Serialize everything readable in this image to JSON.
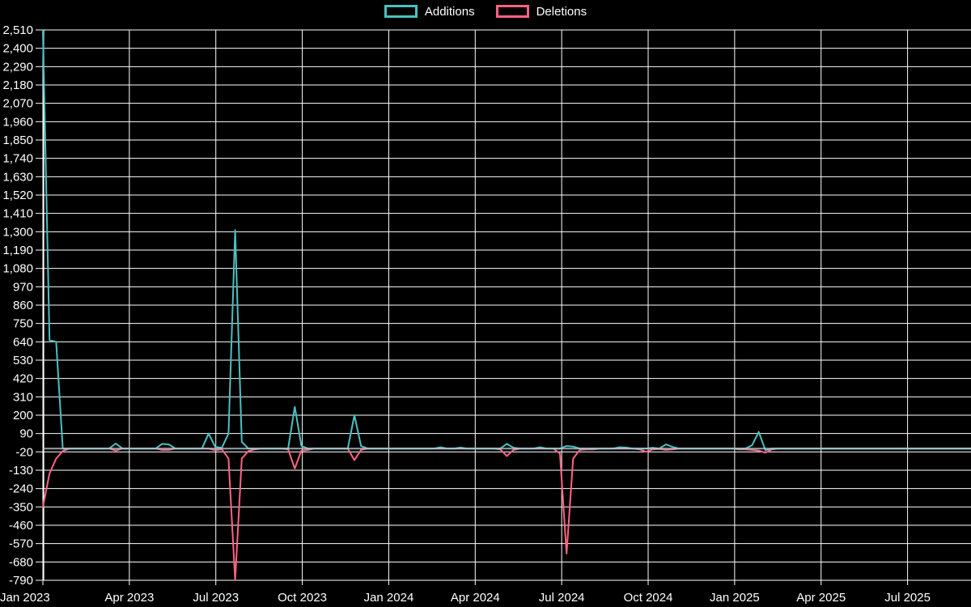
{
  "legend": {
    "items": [
      {
        "label": "Additions",
        "color": "#4bc0c0"
      },
      {
        "label": "Deletions",
        "color": "#ff6384"
      }
    ]
  },
  "chart_data": {
    "type": "line",
    "title": "",
    "background_color": "#000000",
    "grid_color": "#ffffff",
    "text_color": "#ffffff",
    "zero_line_color": "#b7cdd2",
    "legend_position": "top",
    "y_axis": {
      "min": -790,
      "max": 2510,
      "step": 110,
      "tick_labels": [
        "2,510",
        "2,400",
        "2,290",
        "2,180",
        "2,070",
        "1,960",
        "1,850",
        "1,740",
        "1,630",
        "1,520",
        "1,410",
        "1,300",
        "1,190",
        "1,080",
        "970",
        "860",
        "750",
        "640",
        "530",
        "420",
        "310",
        "200",
        "90",
        "-20",
        "-130",
        "-240",
        "-350",
        "-460",
        "-570",
        "-680",
        "-790"
      ]
    },
    "x_axis": {
      "tick_labels": [
        "Jan 2023",
        "Apr 2023",
        "Jul 2023",
        "Oct 2023",
        "Jan 2024",
        "Apr 2024",
        "Jul 2024",
        "Oct 2024",
        "Jan 2025",
        "Apr 2025",
        "Jul 2025"
      ],
      "tick_month_index": [
        0,
        3,
        6,
        9,
        12,
        15,
        18,
        21,
        24,
        27,
        30
      ],
      "start_week_date": "2023-01-01",
      "weeks_total": 140
    },
    "series": [
      {
        "name": "Additions",
        "color": "#4bc0c0",
        "default_value": 0,
        "points_week_value": [
          [
            0,
            2510
          ],
          [
            1,
            650
          ],
          [
            2,
            640
          ],
          [
            3,
            0
          ],
          [
            10,
            0
          ],
          [
            11,
            30
          ],
          [
            12,
            0
          ],
          [
            17,
            0
          ],
          [
            18,
            28
          ],
          [
            19,
            25
          ],
          [
            20,
            0
          ],
          [
            24,
            0
          ],
          [
            25,
            90
          ],
          [
            26,
            10
          ],
          [
            27,
            5
          ],
          [
            28,
            90
          ],
          [
            29,
            1310
          ],
          [
            30,
            40
          ],
          [
            31,
            0
          ],
          [
            37,
            0
          ],
          [
            38,
            250
          ],
          [
            39,
            15
          ],
          [
            40,
            0
          ],
          [
            46,
            0
          ],
          [
            47,
            200
          ],
          [
            48,
            15
          ],
          [
            49,
            0
          ],
          [
            59,
            0
          ],
          [
            60,
            8
          ],
          [
            61,
            0
          ],
          [
            63,
            6
          ],
          [
            64,
            0
          ],
          [
            69,
            0
          ],
          [
            70,
            28
          ],
          [
            71,
            5
          ],
          [
            72,
            0
          ],
          [
            74,
            0
          ],
          [
            75,
            8
          ],
          [
            76,
            0
          ],
          [
            78,
            0
          ],
          [
            79,
            15
          ],
          [
            80,
            12
          ],
          [
            81,
            0
          ],
          [
            86,
            0
          ],
          [
            87,
            8
          ],
          [
            88,
            6
          ],
          [
            89,
            0
          ],
          [
            91,
            0
          ],
          [
            92,
            5
          ],
          [
            93,
            0
          ],
          [
            94,
            25
          ],
          [
            95,
            10
          ],
          [
            96,
            0
          ],
          [
            106,
            0
          ],
          [
            107,
            20
          ],
          [
            108,
            100
          ],
          [
            109,
            -10
          ],
          [
            110,
            0
          ]
        ]
      },
      {
        "name": "Deletions",
        "color": "#ff6384",
        "default_value": 0,
        "points_week_value": [
          [
            0,
            -350
          ],
          [
            1,
            -150
          ],
          [
            2,
            -60
          ],
          [
            3,
            -15
          ],
          [
            4,
            0
          ],
          [
            10,
            0
          ],
          [
            11,
            -12
          ],
          [
            12,
            0
          ],
          [
            17,
            0
          ],
          [
            18,
            -8
          ],
          [
            19,
            -8
          ],
          [
            20,
            0
          ],
          [
            25,
            0
          ],
          [
            26,
            -10
          ],
          [
            27,
            -5
          ],
          [
            28,
            -60
          ],
          [
            29,
            -790
          ],
          [
            30,
            -60
          ],
          [
            31,
            -15
          ],
          [
            32,
            -5
          ],
          [
            33,
            0
          ],
          [
            37,
            -5
          ],
          [
            38,
            -120
          ],
          [
            39,
            -12
          ],
          [
            40,
            -8
          ],
          [
            41,
            0
          ],
          [
            46,
            0
          ],
          [
            47,
            -70
          ],
          [
            48,
            -8
          ],
          [
            49,
            0
          ],
          [
            69,
            -5
          ],
          [
            70,
            -45
          ],
          [
            71,
            -8
          ],
          [
            72,
            0
          ],
          [
            78,
            -30
          ],
          [
            79,
            -630
          ],
          [
            80,
            -60
          ],
          [
            81,
            -8
          ],
          [
            82,
            -5
          ],
          [
            83,
            -5
          ],
          [
            84,
            0
          ],
          [
            90,
            -5
          ],
          [
            91,
            -20
          ],
          [
            92,
            -5
          ],
          [
            93,
            -3
          ],
          [
            94,
            -8
          ],
          [
            95,
            -5
          ],
          [
            96,
            0
          ],
          [
            105,
            -5
          ],
          [
            106,
            -5
          ],
          [
            107,
            -8
          ],
          [
            108,
            -12
          ],
          [
            109,
            -25
          ],
          [
            110,
            -5
          ],
          [
            111,
            0
          ]
        ]
      }
    ]
  }
}
